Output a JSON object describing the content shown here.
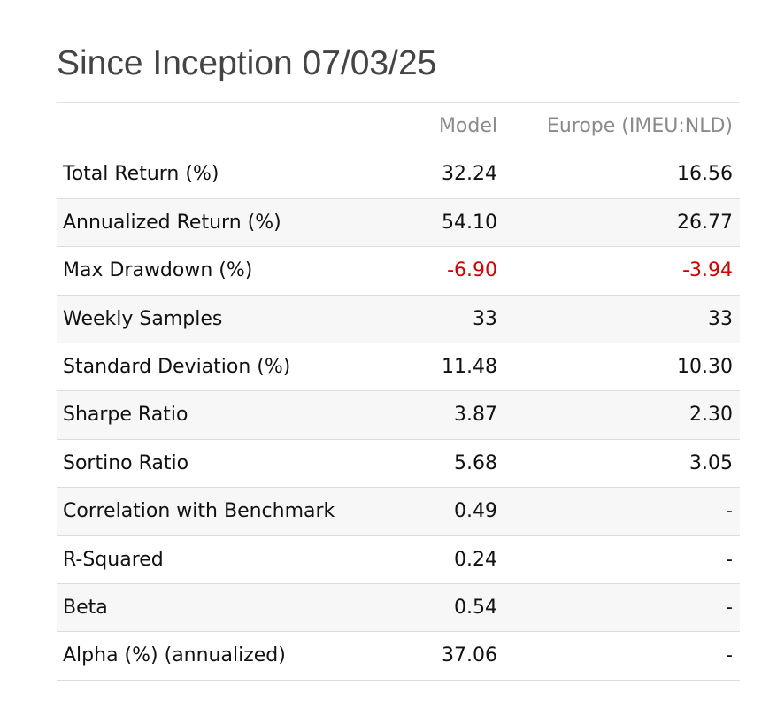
{
  "title": "Since Inception 07/03/25",
  "table": {
    "headers": [
      "Model",
      "Europe (IMEU:NLD)"
    ],
    "rows": [
      [
        "Total Return (%)",
        "32.24",
        "16.56"
      ],
      [
        "Annualized Return (%)",
        "54.10",
        "26.77"
      ],
      [
        "Max Drawdown (%)",
        "-6.90",
        "-3.94"
      ],
      [
        "Weekly Samples",
        "33",
        "33"
      ],
      [
        "Standard Deviation (%)",
        "11.48",
        "10.30"
      ],
      [
        "Sharpe Ratio",
        "3.87",
        "2.30"
      ],
      [
        "Sortino Ratio",
        "5.68",
        "3.05"
      ],
      [
        "Correlation with Benchmark",
        "0.49",
        "-"
      ],
      [
        "R-Squared",
        "0.24",
        "-"
      ],
      [
        "Beta",
        "0.54",
        "-"
      ],
      [
        "Alpha (%) (annualized)",
        "37.06",
        "-"
      ]
    ]
  }
}
